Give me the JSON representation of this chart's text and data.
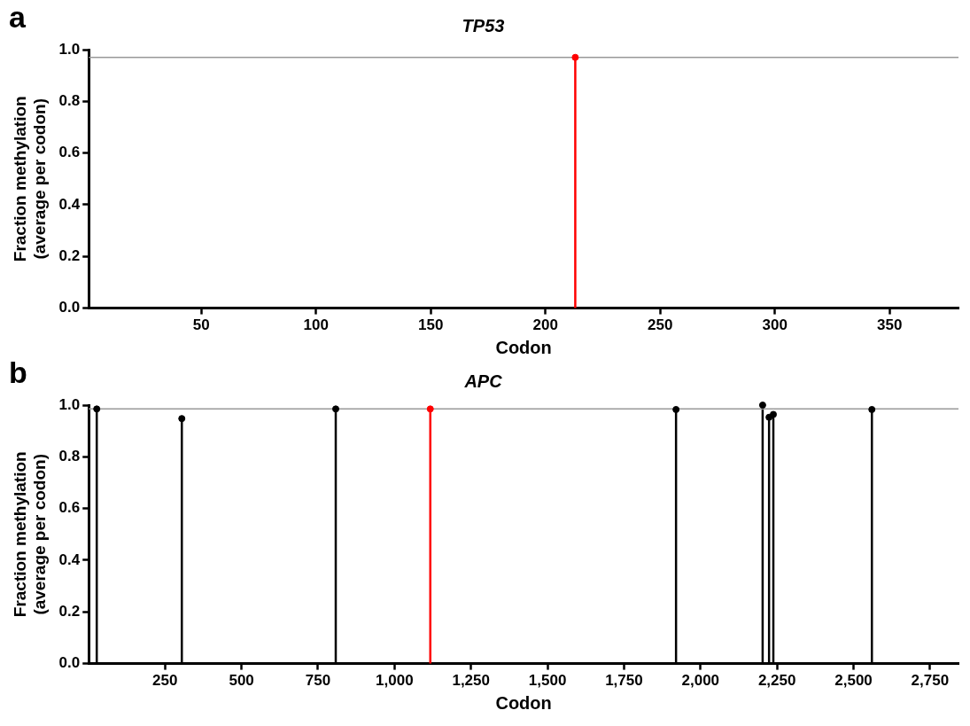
{
  "chart_data": [
    {
      "type": "lollipop",
      "title": "TP53",
      "xlabel": "Codon",
      "ylabel": "Fraction methylation\n(average per codon)",
      "annotations": [
        "a"
      ],
      "xlim": [
        1,
        380
      ],
      "xticks": [
        50,
        100,
        150,
        200,
        250,
        300,
        350
      ],
      "ylim": [
        0,
        1
      ],
      "yticks": [
        {
          "value": 0,
          "label": "0.0"
        },
        {
          "value": 0.2,
          "label": "0.2"
        },
        {
          "value": 0.4,
          "label": "0.4"
        },
        {
          "value": 0.6,
          "label": "0.6"
        },
        {
          "value": 0.8,
          "label": "0.8"
        },
        {
          "value": 1,
          "label": "1.0"
        }
      ],
      "marker": "circle",
      "grid": false,
      "legend": false,
      "ref_lines": [
        {
          "axis": "y",
          "value": 0.97,
          "color": "#999999"
        }
      ],
      "series": [
        {
          "x": [
            213
          ],
          "values": [
            0.97
          ],
          "colors": [
            "#ff0000"
          ]
        }
      ]
    },
    {
      "type": "lollipop",
      "title": "APC",
      "xlabel": "Codon",
      "ylabel": "Fraction methylation\n(average per codon)",
      "annotations": [
        "b"
      ],
      "xlim": [
        1,
        2843
      ],
      "xticks": [
        250,
        500,
        750,
        {
          "value": 1000,
          "label": "1,000"
        },
        {
          "value": 1250,
          "label": "1,250"
        },
        {
          "value": 1500,
          "label": "1,500"
        },
        {
          "value": 1750,
          "label": "1,750"
        },
        {
          "value": 2000,
          "label": "2,000"
        },
        {
          "value": 2250,
          "label": "2,250"
        },
        {
          "value": 2500,
          "label": "2,500"
        },
        {
          "value": 2750,
          "label": "2,750"
        }
      ],
      "ylim": [
        0,
        1
      ],
      "yticks": [
        {
          "value": 0,
          "label": "0.0"
        },
        {
          "value": 0.2,
          "label": "0.2"
        },
        {
          "value": 0.4,
          "label": "0.4"
        },
        {
          "value": 0.6,
          "label": "0.6"
        },
        {
          "value": 0.8,
          "label": "0.8"
        },
        {
          "value": 1,
          "label": "1.0"
        }
      ],
      "marker": "circle",
      "grid": false,
      "legend": false,
      "ref_lines": [
        {
          "axis": "y",
          "value": 0.985,
          "color": "#999999"
        }
      ],
      "series": [
        {
          "x": [
            27,
            305,
            808,
            1117,
            1920,
            2203,
            2224,
            2238,
            2560
          ],
          "values": [
            0.985,
            0.948,
            0.985,
            0.985,
            0.983,
            1.0,
            0.953,
            0.964,
            0.983
          ],
          "colors": [
            "#000000",
            "#000000",
            "#000000",
            "#ff0000",
            "#000000",
            "#000000",
            "#000000",
            "#000000",
            "#000000"
          ]
        }
      ]
    }
  ]
}
